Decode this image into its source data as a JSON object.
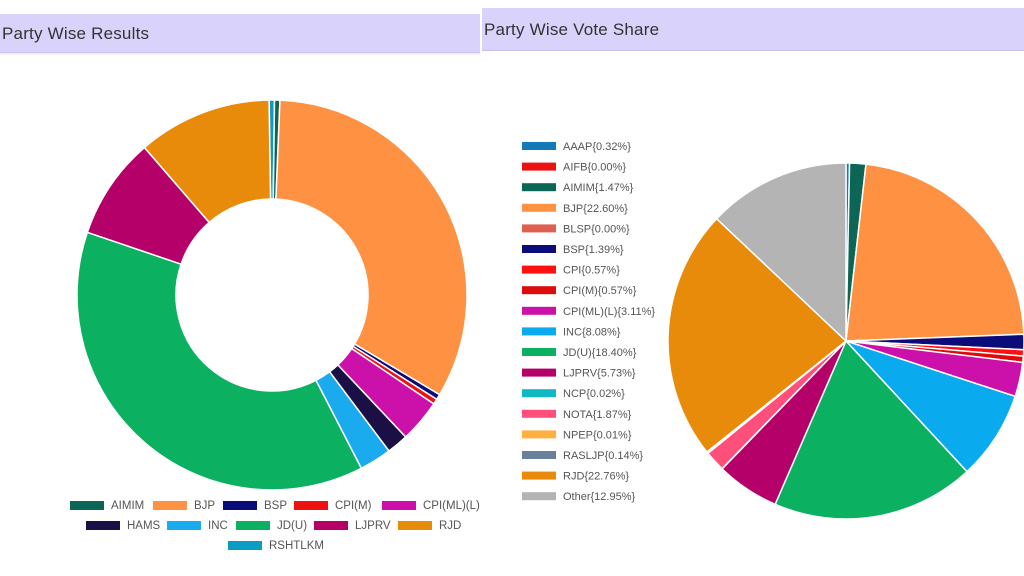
{
  "left_panel": {
    "title": "Party Wise Results"
  },
  "right_panel": {
    "title": "Party Wise Vote Share"
  },
  "chart_data": [
    {
      "type": "donut",
      "slices": [
        {
          "label": "RSHTLKM",
          "value": 1,
          "color": "#0b9cc4"
        },
        {
          "label": "AIMIM",
          "value": 1,
          "color": "#0b6655"
        },
        {
          "label": "BJP",
          "value": 74,
          "color": "#ff9143"
        },
        {
          "label": "BSP",
          "value": 1,
          "color": "#0b0b7a"
        },
        {
          "label": "CPI(M)",
          "value": 1,
          "color": "#ee1111"
        },
        {
          "label": "CPI(ML)(L)",
          "value": 8,
          "color": "#cc11aa"
        },
        {
          "label": "HAMS",
          "value": 4,
          "color": "#1a1046"
        },
        {
          "label": "INC",
          "value": 6,
          "color": "#1aaaee"
        },
        {
          "label": "JD(U)",
          "value": 85,
          "color": "#0bb060"
        },
        {
          "label": "LJPRV",
          "value": 19,
          "color": "#b5006a"
        },
        {
          "label": "RJD",
          "value": 25,
          "color": "#e88a0a"
        }
      ],
      "legend": [
        {
          "label": "AIMIM",
          "color": "#0b6655"
        },
        {
          "label": "BJP",
          "color": "#ff9143"
        },
        {
          "label": "BSP",
          "color": "#0b0b7a"
        },
        {
          "label": "CPI(M)",
          "color": "#ee1111"
        },
        {
          "label": "CPI(ML)(L)",
          "color": "#cc11aa"
        },
        {
          "label": "HAMS",
          "color": "#1a1046"
        },
        {
          "label": "INC",
          "color": "#1aaaee"
        },
        {
          "label": "JD(U)",
          "color": "#0bb060"
        },
        {
          "label": "LJPRV",
          "color": "#b5006a"
        },
        {
          "label": "RJD",
          "color": "#e88a0a"
        },
        {
          "label": "RSHTLKM",
          "color": "#0b9cc4"
        }
      ],
      "legend_placement": "bottom"
    },
    {
      "type": "pie",
      "slices": [
        {
          "label": "AAAP{0.32%}",
          "value": 0.32,
          "color": "#1479b8"
        },
        {
          "label": "AIFB{0.00%}",
          "value": 0.0,
          "color": "#ee1111"
        },
        {
          "label": "AIMIM{1.47%}",
          "value": 1.47,
          "color": "#0b6655"
        },
        {
          "label": "BJP{22.60%}",
          "value": 22.6,
          "color": "#ff9143"
        },
        {
          "label": "BLSP{0.00%}",
          "value": 0.0,
          "color": "#e06050"
        },
        {
          "label": "BSP{1.39%}",
          "value": 1.39,
          "color": "#0b0b7a"
        },
        {
          "label": "CPI{0.57%}",
          "value": 0.57,
          "color": "#ff1010"
        },
        {
          "label": "CPI(M){0.57%}",
          "value": 0.57,
          "color": "#dd0c0c"
        },
        {
          "label": "CPI(ML)(L){3.11%}",
          "value": 3.11,
          "color": "#cc11aa"
        },
        {
          "label": "INC{8.08%}",
          "value": 8.08,
          "color": "#0aaaee"
        },
        {
          "label": "JD(U){18.40%}",
          "value": 18.4,
          "color": "#0bb060"
        },
        {
          "label": "LJPRV{5.73%}",
          "value": 5.73,
          "color": "#b5006a"
        },
        {
          "label": "NCP{0.02%}",
          "value": 0.02,
          "color": "#10b8c4"
        },
        {
          "label": "NOTA{1.87%}",
          "value": 1.87,
          "color": "#ff4f7a"
        },
        {
          "label": "NPEP{0.01%}",
          "value": 0.01,
          "color": "#ffb040"
        },
        {
          "label": "RASLJP{0.14%}",
          "value": 0.14,
          "color": "#6a7f99"
        },
        {
          "label": "RJD{22.76%}",
          "value": 22.76,
          "color": "#e88a0a"
        },
        {
          "label": "Other{12.95%}",
          "value": 12.95,
          "color": "#b4b4b4"
        }
      ],
      "legend_placement": "left"
    }
  ]
}
